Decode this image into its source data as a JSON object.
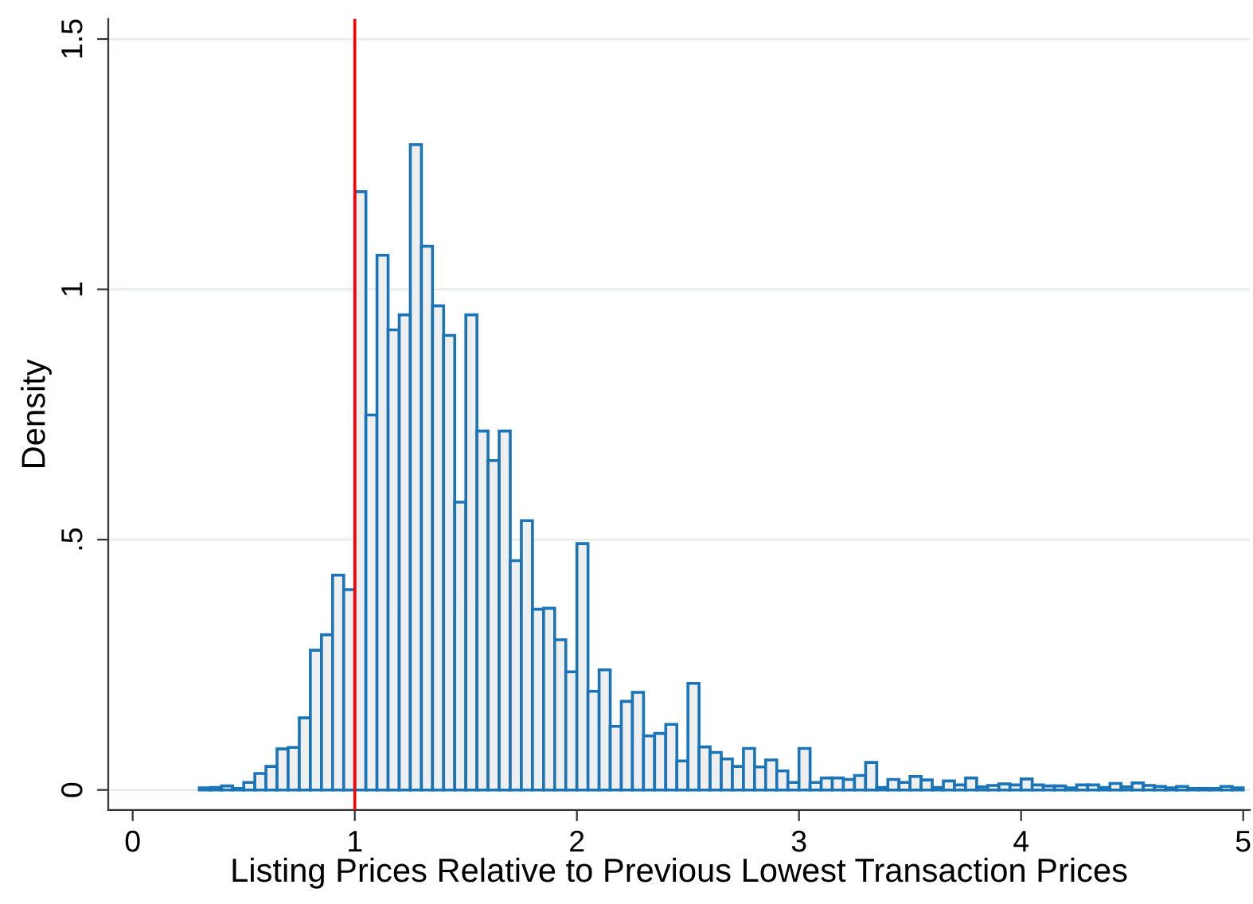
{
  "chart_data": {
    "type": "histogram",
    "xlabel": "Listing Prices Relative to Previous Lowest Transaction Prices",
    "ylabel": "Density",
    "bins": [
      0.3,
      0.35,
      0.4,
      0.45,
      0.5,
      0.55,
      0.6,
      0.65,
      0.7,
      0.75,
      0.8,
      0.85,
      0.9,
      0.95,
      1.0,
      1.05,
      1.1,
      1.15,
      1.2,
      1.25,
      1.3,
      1.35,
      1.4,
      1.45,
      1.5,
      1.55,
      1.6,
      1.65,
      1.7,
      1.75,
      1.8,
      1.85,
      1.9,
      1.95,
      2.0,
      2.05,
      2.1,
      2.15,
      2.2,
      2.25,
      2.3,
      2.35,
      2.4,
      2.45,
      2.5,
      2.55,
      2.6,
      2.65,
      2.7,
      2.75,
      2.8,
      2.85,
      2.9,
      2.95,
      3.0,
      3.05,
      3.1,
      3.15,
      3.2,
      3.25,
      3.3,
      3.35,
      3.4,
      3.45,
      3.5,
      3.55,
      3.6,
      3.65,
      3.7,
      3.75,
      3.8,
      3.85,
      3.9,
      3.95,
      4.0,
      4.05,
      4.1,
      4.15,
      4.2,
      4.25,
      4.3,
      4.35,
      4.4,
      4.45,
      4.5,
      4.55,
      4.6,
      4.65,
      4.7,
      4.75,
      4.8,
      4.85,
      4.9,
      4.95,
      5.0
    ],
    "values": [
      0.004,
      0.005,
      0.008,
      0.003,
      0.015,
      0.033,
      0.047,
      0.082,
      0.085,
      0.144,
      0.279,
      0.31,
      0.429,
      0.4,
      1.195,
      0.749,
      1.068,
      0.919,
      0.949,
      1.289,
      1.086,
      0.967,
      0.908,
      0.575,
      0.949,
      0.717,
      0.658,
      0.717,
      0.458,
      0.538,
      0.361,
      0.363,
      0.3,
      0.236,
      0.492,
      0.197,
      0.24,
      0.127,
      0.177,
      0.195,
      0.108,
      0.113,
      0.131,
      0.058,
      0.213,
      0.086,
      0.075,
      0.062,
      0.047,
      0.083,
      0.046,
      0.06,
      0.038,
      0.015,
      0.083,
      0.015,
      0.024,
      0.024,
      0.021,
      0.029,
      0.055,
      0.005,
      0.021,
      0.015,
      0.027,
      0.02,
      0.005,
      0.018,
      0.01,
      0.024,
      0.006,
      0.009,
      0.012,
      0.01,
      0.022,
      0.01,
      0.008,
      0.008,
      0.004,
      0.01,
      0.01,
      0.005,
      0.013,
      0.006,
      0.014,
      0.009,
      0.007,
      0.004,
      0.007,
      0.003,
      0.003,
      0.003,
      0.007,
      0.004
    ],
    "color": "#1a74b8",
    "xlim": [
      -0.11,
      5.03
    ],
    "xticks": [
      0,
      1,
      2,
      3,
      4,
      5
    ],
    "ylim": [
      -0.04,
      1.54
    ],
    "yticks": [
      0,
      {
        "value": 0.5,
        "label": ".5"
      },
      1,
      1.5
    ],
    "grid": "y",
    "ref_lines": [
      {
        "axis": "x",
        "value": 1,
        "color": "#ff0000"
      }
    ]
  }
}
